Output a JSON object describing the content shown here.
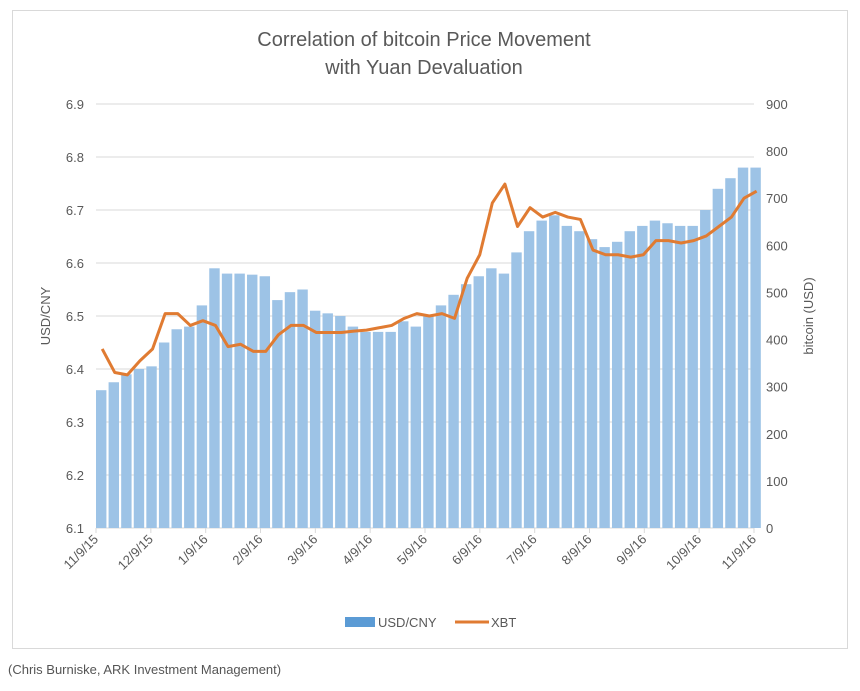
{
  "chart_data": {
    "type": "bar+line",
    "title": [
      "Correlation of bitcoin Price Movement",
      "with Yuan Devaluation"
    ],
    "xlabel": "",
    "ylabel": "USD/CNY",
    "ylabel_right": "bitcoin (USD)",
    "ylim": [
      6.1,
      6.9
    ],
    "ylim_right": [
      0,
      900
    ],
    "yticks": [
      "6.1",
      "6.2",
      "6.3",
      "6.4",
      "6.5",
      "6.6",
      "6.7",
      "6.8",
      "6.9"
    ],
    "yticks_right": [
      "0",
      "100",
      "200",
      "300",
      "400",
      "500",
      "600",
      "700",
      "800",
      "900"
    ],
    "xticks": [
      "11/9/15",
      "12/9/15",
      "1/9/16",
      "2/9/16",
      "3/9/16",
      "4/9/16",
      "5/9/16",
      "6/9/16",
      "7/9/16",
      "8/9/16",
      "9/9/16",
      "10/9/16",
      "11/9/16"
    ],
    "grid": true,
    "legend": "bottom",
    "x": [
      "11/9/15",
      "11/16/15",
      "11/23/15",
      "11/30/15",
      "12/7/15",
      "12/14/15",
      "12/21/15",
      "12/28/15",
      "1/4/16",
      "1/11/16",
      "1/18/16",
      "1/25/16",
      "2/1/16",
      "2/8/16",
      "2/15/16",
      "2/22/16",
      "2/29/16",
      "3/7/16",
      "3/14/16",
      "3/21/16",
      "3/28/16",
      "4/4/16",
      "4/11/16",
      "4/18/16",
      "4/25/16",
      "5/2/16",
      "5/9/16",
      "5/16/16",
      "5/23/16",
      "5/30/16",
      "6/6/16",
      "6/13/16",
      "6/20/16",
      "6/27/16",
      "7/4/16",
      "7/11/16",
      "7/18/16",
      "7/25/16",
      "8/1/16",
      "8/8/16",
      "8/15/16",
      "8/22/16",
      "8/29/16",
      "9/5/16",
      "9/12/16",
      "9/19/16",
      "9/26/16",
      "10/3/16",
      "10/10/16",
      "10/17/16",
      "10/24/16",
      "10/31/16",
      "11/7/16"
    ],
    "series": [
      {
        "name": "USD/CNY",
        "type": "bar",
        "axis": "left",
        "color": "#9dc3e6",
        "values": [
          6.36,
          6.375,
          6.39,
          6.4,
          6.405,
          6.45,
          6.475,
          6.48,
          6.52,
          6.59,
          6.58,
          6.58,
          6.578,
          6.575,
          6.53,
          6.545,
          6.55,
          6.51,
          6.505,
          6.5,
          6.48,
          6.47,
          6.47,
          6.47,
          6.49,
          6.48,
          6.5,
          6.52,
          6.54,
          6.56,
          6.575,
          6.59,
          6.58,
          6.62,
          6.66,
          6.68,
          6.69,
          6.67,
          6.66,
          6.645,
          6.63,
          6.64,
          6.66,
          6.67,
          6.68,
          6.675,
          6.67,
          6.67,
          6.7,
          6.74,
          6.76,
          6.78,
          6.78
        ]
      },
      {
        "name": "XBT",
        "type": "line",
        "axis": "right",
        "color": "#e07b32",
        "values": [
          380,
          330,
          325,
          355,
          380,
          455,
          455,
          430,
          440,
          430,
          385,
          390,
          375,
          375,
          410,
          430,
          430,
          415,
          415,
          415,
          418,
          420,
          425,
          430,
          445,
          455,
          450,
          455,
          445,
          530,
          580,
          690,
          730,
          640,
          680,
          660,
          670,
          660,
          655,
          590,
          580,
          580,
          575,
          580,
          610,
          610,
          605,
          610,
          620,
          640,
          660,
          700,
          715
        ]
      }
    ]
  },
  "caption": "(Chris Burniske, ARK Investment Management)"
}
